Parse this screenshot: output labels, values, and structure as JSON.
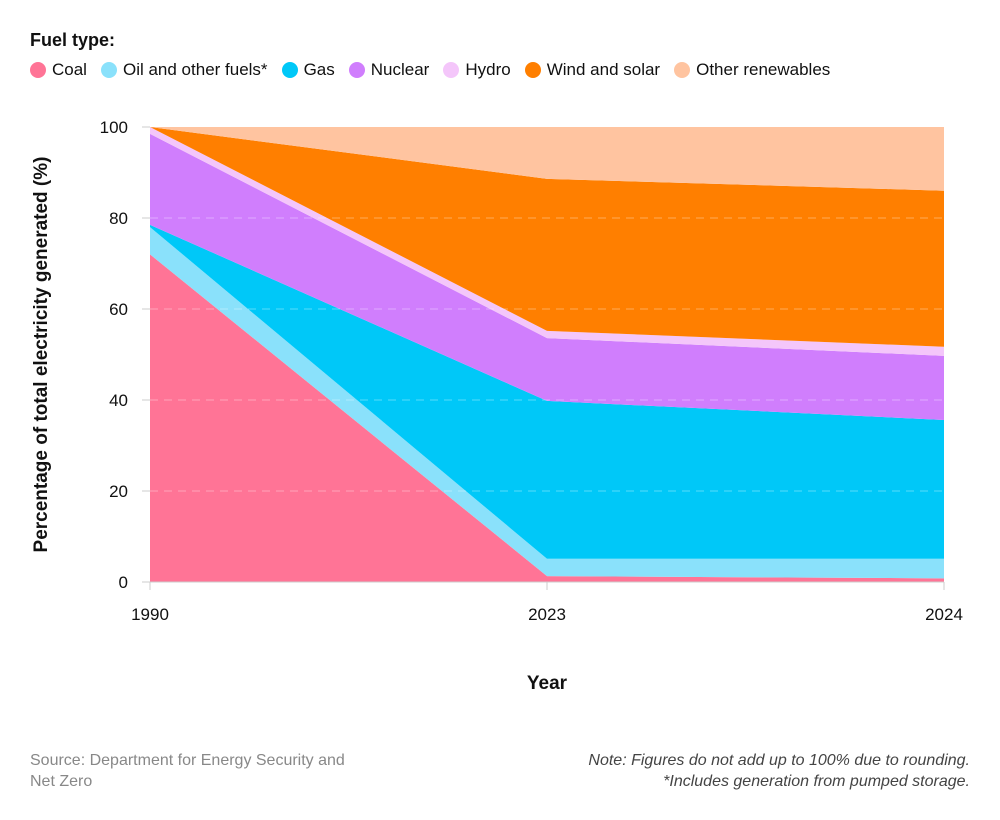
{
  "chart_data": {
    "type": "area",
    "stacked": true,
    "legend_title": "Fuel type:",
    "legend_position": "top-left",
    "xlabel": "Year",
    "ylabel": "Percentage of total electricity generated (%)",
    "categories": [
      "1990",
      "2023",
      "2024"
    ],
    "ylim": [
      0,
      100
    ],
    "yticks": [
      0,
      20,
      40,
      60,
      80,
      100
    ],
    "grid": true,
    "series": [
      {
        "name": "Coal",
        "color": "#ff7496",
        "values": [
          72,
          1.3,
          0.8
        ]
      },
      {
        "name": "Oil and other fuels*",
        "color": "#8ae1fb",
        "values": [
          6,
          3.8,
          4.3
        ]
      },
      {
        "name": "Gas",
        "color": "#00c8f8",
        "values": [
          0.5,
          34.7,
          30.5
        ]
      },
      {
        "name": "Nuclear",
        "color": "#d07efd",
        "values": [
          20,
          13.8,
          14.1
        ]
      },
      {
        "name": "Hydro",
        "color": "#f4c6fa",
        "values": [
          1.5,
          1.6,
          2.0
        ]
      },
      {
        "name": "Wind and solar",
        "color": "#ff7f00",
        "values": [
          0,
          33.4,
          34.3
        ]
      },
      {
        "name": "Other renewables",
        "color": "#ffc4a0",
        "values": [
          0,
          11.4,
          14.0
        ]
      }
    ]
  },
  "source": "Source: Department for Energy Security and Net Zero",
  "note_line1": "Note: Figures do not add up to 100% due to rounding.",
  "note_line2": "*Includes generation from pumped storage."
}
